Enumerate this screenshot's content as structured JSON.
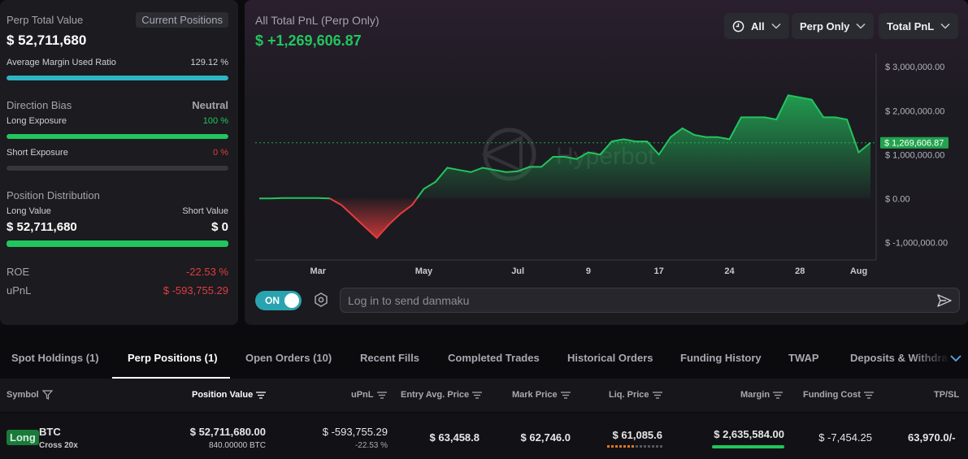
{
  "summary": {
    "perp_total_label": "Perp Total Value",
    "current_positions_label": "Current Positions",
    "perp_total_value": "$ 52,711,680",
    "avg_margin_label": "Average Margin Used Ratio",
    "avg_margin_value": "129.12 %",
    "avg_margin_fraction": 1.0,
    "direction_bias_label": "Direction Bias",
    "direction_bias_value": "Neutral",
    "long_exposure_label": "Long Exposure",
    "long_exposure_value": "100 %",
    "long_exposure_fraction": 1.0,
    "short_exposure_label": "Short Exposure",
    "short_exposure_value": "0 %",
    "short_exposure_fraction": 0.0,
    "position_distribution_label": "Position Distribution",
    "long_value_label": "Long Value",
    "short_value_label": "Short Value",
    "long_value": "$ 52,711,680",
    "short_value": "$ 0",
    "distribution_long_fraction": 1.0,
    "roe_label": "ROE",
    "roe_value": "-22.53 %",
    "upnl_label": "uPnL",
    "upnl_value": "$ -593,755.29",
    "colors": {
      "bar_margin": "#2fb4c4",
      "bar_green": "#22c55e",
      "negative": "#e23d3d",
      "positive": "#22c55e"
    }
  },
  "chart": {
    "title": "All Total PnL (Perp Only)",
    "total": "$ +1,269,606.87",
    "range_dropdown": "All",
    "scope_dropdown": "Perp Only",
    "metric_dropdown": "Total PnL",
    "current_value_tag": "$ 1,269,606.87",
    "watermark": "Hyperbot",
    "toggle_label": "ON",
    "danmaku_placeholder": "Log in to send danmaku"
  },
  "chart_data": {
    "type": "area",
    "title": "All Total PnL (Perp Only)",
    "xlabel": "",
    "ylabel": "",
    "x_tick_labels": [
      "Mar",
      "May",
      "Jul",
      "9",
      "17",
      "24",
      "28",
      "Aug"
    ],
    "y_tick_labels": [
      "$ 3,000,000.00",
      "$ 2,000,000.00",
      "$ 1,000,000.00",
      "$ 0.00",
      "$ -1,000,000.00"
    ],
    "y_ticks": [
      3000000,
      2000000,
      1000000,
      0,
      -1000000
    ],
    "ylim": [
      -1400000,
      3300000
    ],
    "current_value": 1269606.87,
    "positive_color": "#22c55e",
    "negative_color": "#e23d3d",
    "series": [
      {
        "values": [
          0,
          0,
          10000,
          10000,
          10000,
          10000,
          0,
          -150000,
          -400000,
          -650000,
          -900000,
          -600000,
          -350000,
          -150000,
          220000,
          380000,
          700000,
          650000,
          600000,
          700000,
          650000,
          600000,
          620000,
          720000,
          720000,
          950000,
          950000,
          900000,
          1050000,
          1000000,
          1300000,
          1350000,
          1300000,
          1300000,
          1000000,
          1400000,
          1600000,
          1450000,
          1400000,
          1400000,
          1350000,
          1850000,
          1850000,
          1850000,
          1800000,
          2350000,
          2300000,
          2250000,
          1850000,
          1850000,
          1800000,
          1050000,
          1269606.87
        ]
      }
    ],
    "legend": "none",
    "grid": false
  },
  "tabs": [
    {
      "label": "Spot Holdings (1)"
    },
    {
      "label": "Perp Positions (1)"
    },
    {
      "label": "Open Orders (10)"
    },
    {
      "label": "Recent Fills"
    },
    {
      "label": "Completed Trades"
    },
    {
      "label": "Historical Orders"
    },
    {
      "label": "Funding History"
    },
    {
      "label": "TWAP"
    },
    {
      "label": "Deposits & Withdra"
    }
  ],
  "table": {
    "headers": {
      "symbol": "Symbol",
      "position_value": "Position Value",
      "upnl": "uPnL",
      "entry": "Entry Avg. Price",
      "mark": "Mark Price",
      "liq": "Liq. Price",
      "margin": "Margin",
      "funding": "Funding Cost",
      "tpsl": "TP/SL"
    },
    "row": {
      "side": "Long",
      "symbol": "BTC",
      "leverage": "Cross 20x",
      "position_value": "$ 52,711,680.00",
      "position_size": "840.00000 BTC",
      "upnl": "$ -593,755.29",
      "upnl_pct": "-22.53 %",
      "entry": "$ 63,458.8",
      "mark": "$ 62,746.0",
      "liq": "$ 61,085.6",
      "margin": "$ 2,635,584.00",
      "funding": "$ -7,454.25",
      "tpsl": "63,970.0/-"
    }
  }
}
